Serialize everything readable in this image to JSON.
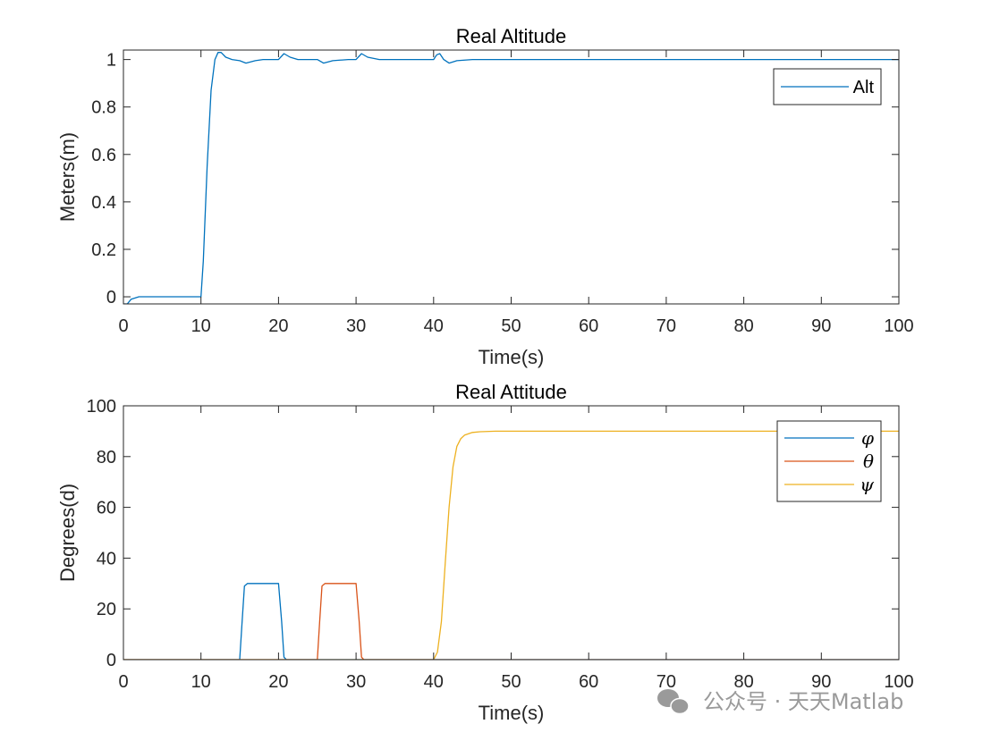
{
  "chart_data": [
    {
      "type": "line",
      "title": "Real Altitude",
      "xlabel": "Time(s)",
      "ylabel": "Meters(m)",
      "xlim": [
        0,
        100
      ],
      "ylim": [
        -0.03,
        1.04
      ],
      "xticks": [
        0,
        10,
        20,
        30,
        40,
        50,
        60,
        70,
        80,
        90,
        100
      ],
      "xtick_labels": [
        "0",
        "10",
        "20",
        "30",
        "40",
        "50",
        "60",
        "70",
        "80",
        "90",
        "100"
      ],
      "yticks": [
        0,
        0.2,
        0.4,
        0.6,
        0.8,
        1
      ],
      "ytick_labels": [
        "0",
        "0.2",
        "0.4",
        "0.6",
        "0.8",
        "1"
      ],
      "grid": false,
      "legend_position": "top-right",
      "series": [
        {
          "name": "Alt",
          "color": "#0072BD",
          "x": [
            0,
            0.5,
            1,
            1.5,
            2,
            3,
            5,
            10,
            10.3,
            10.8,
            11.3,
            11.8,
            12.2,
            12.6,
            13.2,
            14,
            15,
            15.8,
            17,
            18,
            20,
            20.7,
            21.5,
            22.5,
            24,
            25,
            25.8,
            27,
            29,
            30,
            30.7,
            31.5,
            33,
            35,
            40,
            40.4,
            40.8,
            41.3,
            42,
            43,
            45,
            100
          ],
          "y": [
            -0.03,
            -0.03,
            -0.01,
            -0.005,
            0,
            0,
            0,
            0,
            0.15,
            0.55,
            0.87,
            1.0,
            1.03,
            1.03,
            1.01,
            1.0,
            0.995,
            0.985,
            0.995,
            1.0,
            1.0,
            1.025,
            1.01,
            1.0,
            1.0,
            1.0,
            0.985,
            0.995,
            1.0,
            1.0,
            1.025,
            1.01,
            1.0,
            1.0,
            1.0,
            1.02,
            1.025,
            1.0,
            0.985,
            0.995,
            1.0,
            1.0
          ]
        }
      ]
    },
    {
      "type": "line",
      "title": "Real Attitude",
      "xlabel": "Time(s)",
      "ylabel": "Degrees(d)",
      "xlim": [
        0,
        100
      ],
      "ylim": [
        0,
        100
      ],
      "xticks": [
        0,
        10,
        20,
        30,
        40,
        50,
        60,
        70,
        80,
        90,
        100
      ],
      "xtick_labels": [
        "0",
        "10",
        "20",
        "30",
        "40",
        "50",
        "60",
        "70",
        "80",
        "90",
        "100"
      ],
      "yticks": [
        0,
        20,
        40,
        60,
        80,
        100
      ],
      "ytick_labels": [
        "0",
        "20",
        "40",
        "60",
        "80",
        "100"
      ],
      "grid": false,
      "legend_position": "top-right",
      "series": [
        {
          "name": "φ",
          "color": "#0072BD",
          "x": [
            0,
            15,
            15.3,
            15.6,
            16,
            20,
            20.4,
            20.7,
            21,
            100
          ],
          "y": [
            0,
            0,
            15,
            29,
            30,
            30,
            15,
            1,
            0,
            0
          ]
        },
        {
          "name": "θ",
          "color": "#D95319",
          "x": [
            0,
            25,
            25.3,
            25.6,
            26,
            30,
            30.4,
            30.7,
            31,
            100
          ],
          "y": [
            0,
            0,
            15,
            29,
            30,
            30,
            15,
            1,
            0,
            0
          ]
        },
        {
          "name": "ψ",
          "color": "#EDB120",
          "x": [
            0,
            40,
            40.5,
            41,
            41.5,
            42,
            42.5,
            43,
            43.5,
            44,
            45,
            46,
            48,
            100
          ],
          "y": [
            0,
            0,
            3,
            15,
            38,
            60,
            76,
            84,
            87,
            88.5,
            89.5,
            89.8,
            90,
            90
          ]
        }
      ]
    }
  ],
  "watermark": {
    "text": "公众号 · 天天Matlab",
    "icon": "wechat-icon",
    "color": "#9a9a9a"
  }
}
